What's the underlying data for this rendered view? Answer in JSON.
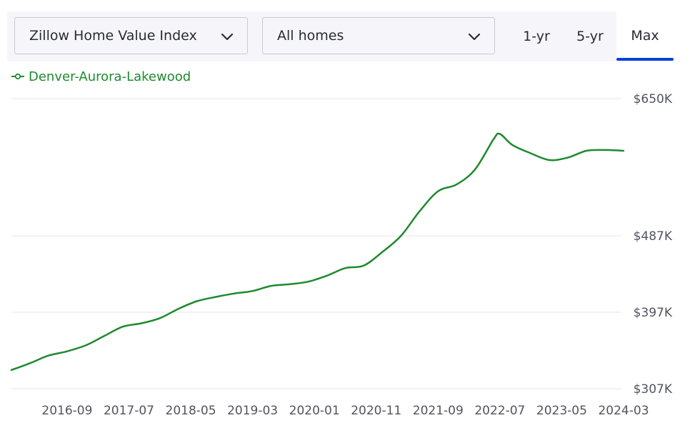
{
  "controls": {
    "metric_dropdown": "Zillow Home Value Index",
    "home_type_dropdown": "All homes",
    "range_tabs": [
      "1-yr",
      "5-yr",
      "Max"
    ],
    "selected_range": "Max",
    "accent_color": "#0041d9"
  },
  "chart_data": {
    "type": "line",
    "title": "",
    "xlabel": "",
    "ylabel": "",
    "series": [
      {
        "name": "Denver-Aurora-Lakewood",
        "color": "#1e8a2e",
        "points": [
          [
            "2015-12",
            329000
          ],
          [
            "2016-03",
            337000
          ],
          [
            "2016-06",
            346000
          ],
          [
            "2016-09",
            351000
          ],
          [
            "2016-12",
            358000
          ],
          [
            "2017-03",
            369000
          ],
          [
            "2017-06",
            380000
          ],
          [
            "2017-09",
            384000
          ],
          [
            "2017-12",
            390000
          ],
          [
            "2018-03",
            401000
          ],
          [
            "2018-06",
            410000
          ],
          [
            "2018-09",
            415000
          ],
          [
            "2018-12",
            419000
          ],
          [
            "2019-03",
            422000
          ],
          [
            "2019-06",
            428000
          ],
          [
            "2019-09",
            430000
          ],
          [
            "2019-12",
            433000
          ],
          [
            "2020-03",
            440000
          ],
          [
            "2020-06",
            449000
          ],
          [
            "2020-09",
            452000
          ],
          [
            "2020-12",
            468000
          ],
          [
            "2021-03",
            487000
          ],
          [
            "2021-06",
            516000
          ],
          [
            "2021-09",
            540000
          ],
          [
            "2021-12",
            548000
          ],
          [
            "2022-03",
            566000
          ],
          [
            "2022-06",
            602000
          ],
          [
            "2022-07",
            608000
          ],
          [
            "2022-09",
            595000
          ],
          [
            "2022-12",
            585000
          ],
          [
            "2023-03",
            577000
          ],
          [
            "2023-06",
            580000
          ],
          [
            "2023-09",
            588000
          ],
          [
            "2023-12",
            589000
          ],
          [
            "2024-03",
            588000
          ]
        ]
      }
    ],
    "x_ticks": [
      "2016-09",
      "2017-07",
      "2018-05",
      "2019-03",
      "2020-01",
      "2020-11",
      "2021-09",
      "2022-07",
      "2023-05",
      "2024-03"
    ],
    "y_ticks": [
      {
        "value": 650000,
        "label": "$650K"
      },
      {
        "value": 487000,
        "label": "$487K"
      },
      {
        "value": 397000,
        "label": "$397K"
      },
      {
        "value": 307000,
        "label": "$307K"
      }
    ],
    "ylim": [
      307000,
      650000
    ],
    "xlim": [
      "2015-12",
      "2024-03"
    ],
    "grid": true,
    "legend_position": "top-left"
  }
}
